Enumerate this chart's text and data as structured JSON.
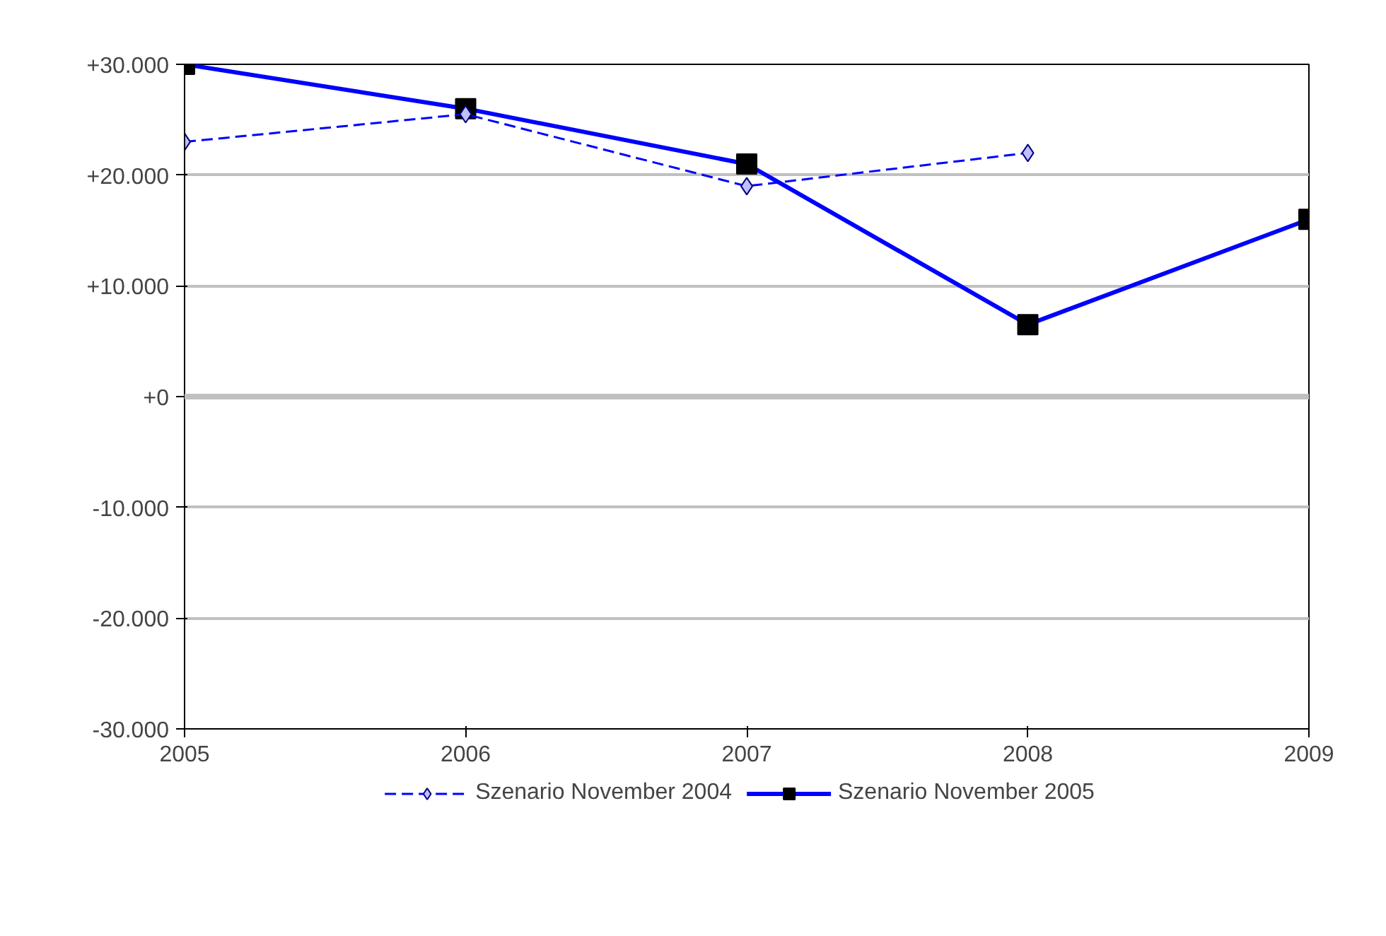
{
  "chart_data": {
    "type": "line",
    "x": [
      2005,
      2006,
      2007,
      2008,
      2009
    ],
    "series": [
      {
        "name": "Szenario November 2004",
        "color": "#0000ff",
        "values": [
          23000,
          25500,
          19000,
          22000,
          null
        ],
        "marker": "diamond",
        "line_style": "dashed"
      },
      {
        "name": "Szenario November 2005",
        "color": "#0000ff",
        "values": [
          30000,
          26000,
          21000,
          6500,
          16000
        ],
        "marker": "square",
        "line_style": "solid"
      }
    ],
    "xlim": [
      2005,
      2009
    ],
    "xticks": [
      2005,
      2006,
      2007,
      2008,
      2009
    ],
    "ylim": [
      -30000,
      30000
    ],
    "yticks": [
      {
        "value": -30000,
        "label": "-30.000"
      },
      {
        "value": -20000,
        "label": "-20.000"
      },
      {
        "value": -10000,
        "label": "-10.000"
      },
      {
        "value": 0,
        "label": "+0"
      },
      {
        "value": 10000,
        "label": "+10.000"
      },
      {
        "value": 20000,
        "label": "+20.000"
      },
      {
        "value": 30000,
        "label": "+30.000"
      }
    ],
    "ref_lines": [
      {
        "axis": "y",
        "value": 0,
        "color": "#c0c0c0"
      }
    ],
    "grid": "y",
    "legend": "bottom"
  }
}
